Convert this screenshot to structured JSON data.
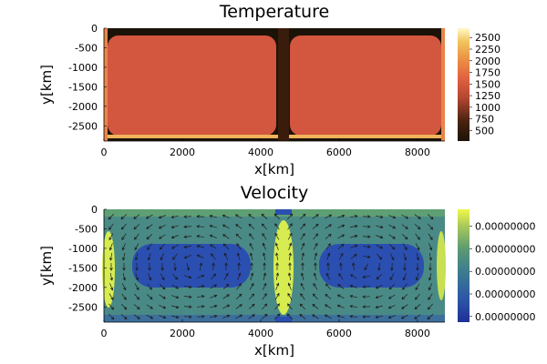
{
  "chart_data": [
    {
      "type": "heatmap",
      "title": "Temperature",
      "xlabel": "x[km]",
      "ylabel": "y[km]",
      "xlim": [
        0,
        8700
      ],
      "ylim": [
        -2890,
        0
      ],
      "xticks": [
        0,
        2000,
        4000,
        6000,
        8000
      ],
      "xtick_labels": [
        "0",
        "2000",
        "4000",
        "6000",
        "8000"
      ],
      "yticks": [
        0,
        -500,
        -1000,
        -1500,
        -2000,
        -2500
      ],
      "ytick_labels": [
        "0",
        "-500",
        "-1000",
        "-1500",
        "-2000",
        "-2500"
      ],
      "colorbar": {
        "colormap": "lajolla",
        "range": [
          273,
          2700
        ],
        "ticks": [
          500,
          750,
          1000,
          1250,
          1500,
          1750,
          2000,
          2250,
          2500
        ],
        "tick_labels": [
          "500",
          "750",
          "1000",
          "1250",
          "1500",
          "1750",
          "2000",
          "2250",
          "2500"
        ]
      },
      "grid": false,
      "legend": "none"
    },
    {
      "type": "heatmap",
      "title": "Velocity",
      "xlabel": "x[km]",
      "ylabel": "y[km]",
      "xlim": [
        0,
        8700
      ],
      "ylim": [
        -2890,
        0
      ],
      "xticks": [
        0,
        2000,
        4000,
        6000,
        8000
      ],
      "xtick_labels": [
        "0",
        "2000",
        "4000",
        "6000",
        "8000"
      ],
      "yticks": [
        0,
        -500,
        -1000,
        -1500,
        -2000,
        -2500
      ],
      "ytick_labels": [
        "0",
        "-500",
        "-1000",
        "-1500",
        "-2000",
        "-2500"
      ],
      "overlay": "velocity arrows",
      "colorbar": {
        "colormap": "viridis-like",
        "range": [
          0,
          1
        ],
        "ticks": [
          0.05,
          0.25,
          0.45,
          0.65,
          0.85
        ],
        "tick_labels": [
          "0.00000000",
          "0.00000000",
          "0.00000000",
          "0.00000000",
          "0.00000000"
        ]
      },
      "grid": false,
      "legend": "none"
    }
  ]
}
